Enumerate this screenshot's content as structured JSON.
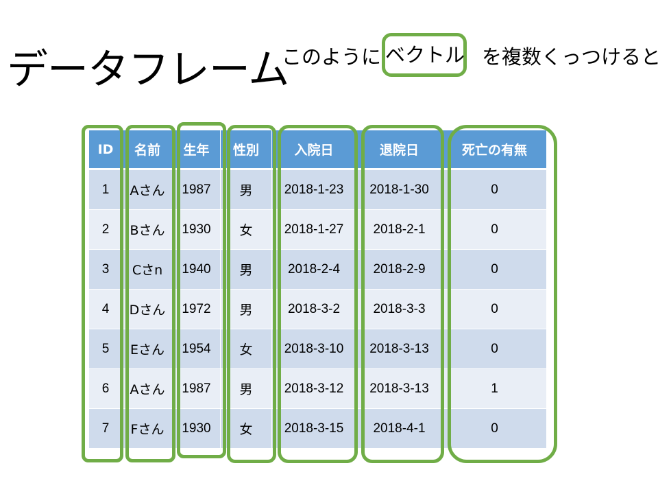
{
  "slide": {
    "title": "データフレーム",
    "caption_before": "このように",
    "caption_highlight": "ベクトル",
    "caption_after": "を複数くっつけると"
  },
  "table": {
    "headers": [
      "ID",
      "名前",
      "生年",
      "性別",
      "入院日",
      "退院日",
      "死亡の有無"
    ],
    "rows": [
      [
        "1",
        "Aさん",
        "1987",
        "男",
        "2018-1-23",
        "2018-1-30",
        "0"
      ],
      [
        "2",
        "Bさん",
        "1930",
        "女",
        "2018-1-27",
        "2018-2-1",
        "0"
      ],
      [
        "3",
        "Cさn",
        "1940",
        "男",
        "2018-2-4",
        "2018-2-9",
        "0"
      ],
      [
        "4",
        "Dさん",
        "1972",
        "男",
        "2018-3-2",
        "2018-3-3",
        "0"
      ],
      [
        "5",
        "Eさん",
        "1954",
        "女",
        "2018-3-10",
        "2018-3-13",
        "0"
      ],
      [
        "6",
        "Aさん",
        "1987",
        "男",
        "2018-3-12",
        "2018-3-13",
        "1"
      ],
      [
        "7",
        "Fさん",
        "1930",
        "女",
        "2018-3-15",
        "2018-4-1",
        "0"
      ]
    ]
  },
  "colors": {
    "header_fill": "#5B9BD5",
    "row_fill_dark": "#CFDBEC",
    "row_fill_light": "#E9EEF6",
    "highlight_outline": "#70AD47"
  }
}
